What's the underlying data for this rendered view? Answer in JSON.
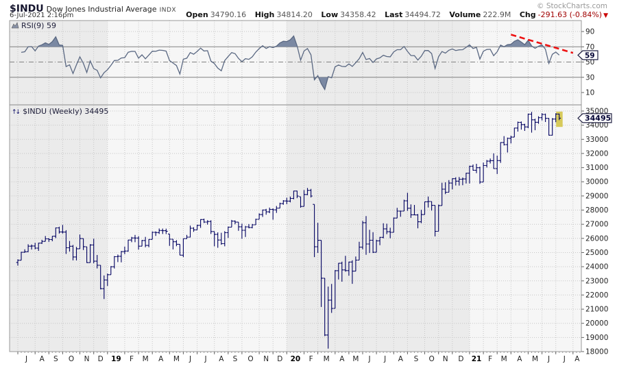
{
  "header": {
    "symbol": "$INDU",
    "name": "Dow Jones Industrial Average",
    "exchange": "INDX",
    "datetime": "6-Jul-2021 2:16pm",
    "copyright": "© StockCharts.com",
    "quote": {
      "open_label": "Open",
      "open": "34790.16",
      "high_label": "High",
      "high": "34814.20",
      "low_label": "Low",
      "low": "34358.42",
      "last_label": "Last",
      "last": "34494.72",
      "volume_label": "Volume",
      "volume": "222.9M",
      "chg_label": "Chg",
      "chg": "-291.63 (-0.84%)",
      "down_arrow": "▼"
    }
  },
  "rsi_panel": {
    "label": "RSI(9) 59",
    "value_badge": "59"
  },
  "main_panel": {
    "label": "$INDU (Weekly) 34495",
    "price_badge": "34495",
    "updown_icon": "↑↓"
  },
  "chart_data": {
    "type": "ohlc",
    "timeframe": "Weekly",
    "title": "$INDU (Weekly)",
    "y_axis": {
      "min": 18000,
      "max": 35000,
      "tick_step": 1000
    },
    "rsi": {
      "period": 9,
      "last": 59,
      "overbought": 70,
      "oversold": 30,
      "midline": 50,
      "axis_labels": [
        90,
        70,
        50,
        30,
        10
      ]
    },
    "trendline": {
      "panel": "rsi",
      "style": "dashed",
      "from": {
        "week": 143,
        "rsi": 86
      },
      "to": {
        "week": 161,
        "rsi": 62
      }
    },
    "x_axis": {
      "month_boundaries_week_index": [
        0,
        5,
        9,
        13,
        18,
        22,
        26,
        31,
        35,
        39,
        44,
        48,
        52,
        57,
        61,
        65,
        70,
        74,
        78,
        83,
        87,
        92,
        96,
        100,
        104,
        109,
        113,
        118,
        122,
        126,
        131,
        135,
        139,
        143,
        148,
        152,
        156,
        161
      ],
      "month_labels": [
        "J",
        "A",
        "S",
        "O",
        "N",
        "D",
        "19",
        "F",
        "M",
        "A",
        "M",
        "J",
        "J",
        "A",
        "S",
        "O",
        "N",
        "D",
        "20",
        "F",
        "M",
        "A",
        "M",
        "J",
        "J",
        "A",
        "S",
        "O",
        "N",
        "D",
        "21",
        "F",
        "M",
        "A",
        "M",
        "J",
        "J",
        "A"
      ],
      "year_boundary_weeks": [
        26,
        78,
        131
      ]
    },
    "weeks_hlc": [
      [
        24520,
        24080,
        24456
      ],
      [
        25050,
        24456,
        25019
      ],
      [
        25224,
        24986,
        25058
      ],
      [
        25587,
        25043,
        25451
      ],
      [
        25568,
        25212,
        25463
      ],
      [
        25692,
        25232,
        25313
      ],
      [
        25697,
        25121,
        25669
      ],
      [
        25898,
        25608,
        25790
      ],
      [
        26167,
        25790,
        25965
      ],
      [
        26014,
        25754,
        25917
      ],
      [
        26160,
        25800,
        26155
      ],
      [
        26769,
        26021,
        26744
      ],
      [
        26830,
        26341,
        26458
      ],
      [
        26952,
        26344,
        26447
      ],
      [
        26576,
        24900,
        25340
      ],
      [
        25817,
        25069,
        25444
      ],
      [
        25537,
        24445,
        24688
      ],
      [
        25397,
        24440,
        25271
      ],
      [
        26278,
        25263,
        25989
      ],
      [
        25990,
        25180,
        25413
      ],
      [
        25412,
        24268,
        24286
      ],
      [
        25590,
        24286,
        25538
      ],
      [
        25980,
        24242,
        24389
      ],
      [
        24828,
        23881,
        24101
      ],
      [
        24106,
        22396,
        22445
      ],
      [
        23381,
        21713,
        23062
      ],
      [
        23518,
        22638,
        23433
      ],
      [
        24038,
        23434,
        23996
      ],
      [
        24751,
        23874,
        24706
      ],
      [
        24860,
        24323,
        24737
      ],
      [
        25110,
        24309,
        25064
      ],
      [
        25425,
        24883,
        25106
      ],
      [
        25900,
        25057,
        25883
      ],
      [
        26110,
        25728,
        26032
      ],
      [
        26241,
        25730,
        26026
      ],
      [
        26155,
        25209,
        25450
      ],
      [
        25890,
        25450,
        25849
      ],
      [
        26110,
        25372,
        25502
      ],
      [
        25950,
        25372,
        25929
      ],
      [
        26487,
        25929,
        26425
      ],
      [
        26495,
        26173,
        26412
      ],
      [
        26697,
        26310,
        26560
      ],
      [
        26695,
        26310,
        26543
      ],
      [
        26689,
        26307,
        26505
      ],
      [
        26311,
        25469,
        25942
      ],
      [
        25958,
        25222,
        25764
      ],
      [
        25877,
        25445,
        25586
      ],
      [
        25586,
        24809,
        24815
      ],
      [
        25984,
        24680,
        25984
      ],
      [
        26249,
        25963,
        26090
      ],
      [
        26907,
        26063,
        26719
      ],
      [
        26790,
        26461,
        26600
      ],
      [
        26966,
        26600,
        26922
      ],
      [
        27359,
        26744,
        27332
      ],
      [
        27398,
        27087,
        27154
      ],
      [
        27284,
        26973,
        27192
      ],
      [
        27281,
        26313,
        26485
      ],
      [
        26485,
        25440,
        26287
      ],
      [
        26427,
        25339,
        25886
      ],
      [
        26399,
        25551,
        25629
      ],
      [
        26514,
        25441,
        26403
      ],
      [
        26836,
        26034,
        26797
      ],
      [
        27306,
        26797,
        27220
      ],
      [
        27272,
        27000,
        27148
      ],
      [
        27148,
        26539,
        26820
      ],
      [
        27046,
        25974,
        26574
      ],
      [
        26882,
        26103,
        26817
      ],
      [
        27014,
        26714,
        26770
      ],
      [
        27024,
        26715,
        26958
      ],
      [
        27390,
        26958,
        27347
      ],
      [
        27775,
        27347,
        27681
      ],
      [
        28040,
        27517,
        28005
      ],
      [
        28090,
        27675,
        27876
      ],
      [
        28174,
        27782,
        28051
      ],
      [
        28120,
        27325,
        28015
      ],
      [
        28290,
        27804,
        28135
      ],
      [
        28518,
        28135,
        28455
      ],
      [
        28702,
        28376,
        28645
      ],
      [
        28873,
        28418,
        28635
      ],
      [
        28958,
        28542,
        28824
      ],
      [
        29374,
        28766,
        29348
      ],
      [
        29368,
        28844,
        28990
      ],
      [
        28945,
        28169,
        28256
      ],
      [
        29409,
        28256,
        29103
      ],
      [
        29568,
        29056,
        29398
      ],
      [
        29499,
        28892,
        28992
      ],
      [
        28403,
        24681,
        25409
      ],
      [
        27102,
        24976,
        25865
      ],
      [
        25865,
        21154,
        23185
      ],
      [
        23189,
        19094,
        19174
      ],
      [
        22595,
        18214,
        21637
      ],
      [
        22783,
        20735,
        21053
      ],
      [
        23759,
        21053,
        23719
      ],
      [
        24264,
        23095,
        24242
      ],
      [
        24357,
        22941,
        23775
      ],
      [
        24764,
        23645,
        23724
      ],
      [
        24349,
        23361,
        24331
      ],
      [
        24452,
        22790,
        23685
      ],
      [
        24722,
        23685,
        24465
      ],
      [
        25758,
        24465,
        25383
      ],
      [
        27232,
        25222,
        27111
      ],
      [
        27580,
        24843,
        25605
      ],
      [
        26611,
        24971,
        25871
      ],
      [
        26438,
        24971,
        25016
      ],
      [
        25907,
        25016,
        25827
      ],
      [
        26109,
        25523,
        26075
      ],
      [
        27071,
        25999,
        26672
      ],
      [
        27036,
        26300,
        26470
      ],
      [
        26754,
        26013,
        26428
      ],
      [
        27484,
        26428,
        27433
      ],
      [
        28155,
        27433,
        27931
      ],
      [
        27959,
        27534,
        27930
      ],
      [
        28733,
        27930,
        28654
      ],
      [
        29224,
        27948,
        28133
      ],
      [
        28402,
        27447,
        27666
      ],
      [
        28364,
        27657,
        27657
      ],
      [
        27721,
        26715,
        27174
      ],
      [
        28026,
        27075,
        27683
      ],
      [
        28600,
        27683,
        28587
      ],
      [
        28957,
        28181,
        28606
      ],
      [
        28611,
        27964,
        28336
      ],
      [
        28336,
        26144,
        26502
      ],
      [
        28391,
        26502,
        28323
      ],
      [
        29934,
        28323,
        29480
      ],
      [
        29965,
        29129,
        29263
      ],
      [
        30116,
        29263,
        29910
      ],
      [
        30250,
        29463,
        30218
      ],
      [
        30320,
        29739,
        30046
      ],
      [
        30343,
        29734,
        30179
      ],
      [
        30303,
        29755,
        30200
      ],
      [
        30637,
        29881,
        30606
      ],
      [
        31140,
        29882,
        31098
      ],
      [
        31223,
        30793,
        30814
      ],
      [
        31272,
        30612,
        30997
      ],
      [
        31061,
        29856,
        29983
      ],
      [
        31362,
        29983,
        31148
      ],
      [
        31543,
        31008,
        31458
      ],
      [
        31647,
        31293,
        31494
      ],
      [
        32009,
        30911,
        30932
      ],
      [
        31851,
        30547,
        31496
      ],
      [
        32798,
        31340,
        32779
      ],
      [
        33227,
        32562,
        32628
      ],
      [
        33124,
        32072,
        33073
      ],
      [
        33259,
        32707,
        33153
      ],
      [
        33811,
        33153,
        33801
      ],
      [
        34256,
        33548,
        34201
      ],
      [
        34257,
        33687,
        34043
      ],
      [
        34098,
        33596,
        33875
      ],
      [
        34811,
        33785,
        34778
      ],
      [
        34943,
        33473,
        34382
      ],
      [
        34454,
        33646,
        34208
      ],
      [
        34631,
        34099,
        34529
      ],
      [
        34849,
        34334,
        34756
      ],
      [
        34820,
        34227,
        34480
      ],
      [
        34500,
        33271,
        33290
      ],
      [
        34501,
        33272,
        34434
      ],
      [
        34847,
        34207,
        34786
      ],
      [
        34814,
        34358,
        34495
      ]
    ],
    "colors": {
      "bar": "#000060",
      "rsi_line": "#5a6882",
      "rsi_fill": "#7b89a3",
      "trendline": "#ee1111",
      "band_dark": "#ebebeb",
      "band_light": "#f6f6f6",
      "grid_dot": "#c6c6c6",
      "border": "#999999",
      "level_line": "#808080",
      "highlight": "#d4c54a",
      "axis_text": "#222222",
      "badge_border": "#222244",
      "badge_text": "#000033"
    }
  }
}
